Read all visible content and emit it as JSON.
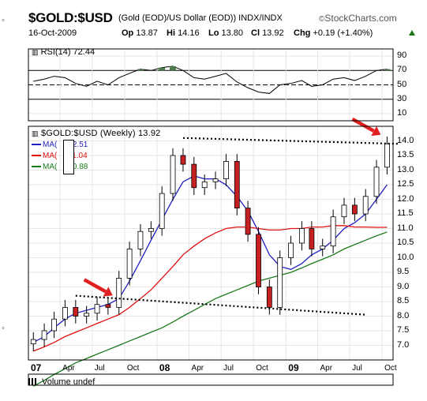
{
  "header": {
    "title": "$GOLD:$USD",
    "subtitle": "(Gold (EOD)/US Dollar (EOD)) INDX/INDX",
    "brand": "StockCharts.com",
    "date": "16-Oct-2009",
    "op_label": "Op",
    "op_value": "13.87",
    "hi_label": "Hi",
    "hi_value": "14.16",
    "lo_label": "Lo",
    "lo_value": "13.80",
    "cl_label": "Cl",
    "cl_value": "13.92",
    "chg_label": "Chg",
    "chg_value": "+0.19 (+1.40%)",
    "chg_color": "#1a7a1a"
  },
  "rsi_panel": {
    "label": "RSI(14) 72.44",
    "y_ticks": [
      "90",
      "70",
      "50",
      "30",
      "10"
    ],
    "colors": {
      "line": "#000000",
      "fill_overbought": "#4a7a4a"
    }
  },
  "price_panel": {
    "label": "$GOLD:$USD (Weekly) 13.92",
    "ma_legend": [
      {
        "label": "MA(",
        "value": "12.51",
        "color": "#1f1fbf"
      },
      {
        "label": "MA(",
        "value": "11.04",
        "color": "#e01010"
      },
      {
        "label": "MA(",
        "value": "10.88",
        "color": "#1a7a1a"
      }
    ],
    "volume_label": "Volume undef"
  },
  "chart_data": {
    "type": "line",
    "title": "$GOLD:$USD (Weekly) 13.92",
    "price_axis": {
      "ylim": [
        6.5,
        14.5
      ],
      "ticks": [
        "14.0",
        "13.5",
        "13.0",
        "12.5",
        "12.0",
        "11.5",
        "11.0",
        "10.5",
        "10.0",
        "9.5",
        "9.0",
        "8.5",
        "8.0",
        "7.5",
        "7.0"
      ]
    },
    "x_axis": {
      "labels": [
        "07",
        "Apr",
        "Jul",
        "Oct",
        "08",
        "Apr",
        "Jul",
        "Oct",
        "09",
        "Apr",
        "Jul",
        "Oct"
      ],
      "bold": [
        true,
        false,
        false,
        false,
        true,
        false,
        false,
        false,
        true,
        false,
        false,
        false
      ]
    },
    "price_series": {
      "dates": [
        "2007-01",
        "2007-02",
        "2007-03",
        "2007-04",
        "2007-05",
        "2007-06",
        "2007-07",
        "2007-08",
        "2007-09",
        "2007-10",
        "2007-11",
        "2007-12",
        "2008-01",
        "2008-02",
        "2008-03",
        "2008-04",
        "2008-05",
        "2008-06",
        "2008-07",
        "2008-08",
        "2008-09",
        "2008-10",
        "2008-11",
        "2008-12",
        "2009-01",
        "2009-02",
        "2009-03",
        "2009-04",
        "2009-05",
        "2009-06",
        "2009-07",
        "2009-08",
        "2009-09",
        "2009-10"
      ],
      "close": [
        7.2,
        7.5,
        7.9,
        8.3,
        8.0,
        8.1,
        8.4,
        8.3,
        9.3,
        10.3,
        10.9,
        11.0,
        12.2,
        13.5,
        13.2,
        12.4,
        12.6,
        12.7,
        13.3,
        11.7,
        10.8,
        9.0,
        8.3,
        10.0,
        10.5,
        11.0,
        10.3,
        10.4,
        11.4,
        11.8,
        11.5,
        12.1,
        13.1,
        13.9
      ]
    },
    "moving_averages": [
      {
        "name": "MA(",
        "value": 12.51,
        "values": [
          7.1,
          7.3,
          7.6,
          7.9,
          8.1,
          8.2,
          8.3,
          8.4,
          8.6,
          9.2,
          9.9,
          10.6,
          11.3,
          12.0,
          12.6,
          12.8,
          12.7,
          12.7,
          12.5,
          12.1,
          11.6,
          10.9,
          10.1,
          9.7,
          9.6,
          9.8,
          10.1,
          10.3,
          10.6,
          11.0,
          11.2,
          11.5,
          12.0,
          12.5
        ]
      },
      {
        "name": "MA(",
        "value": 11.04,
        "values": [
          6.8,
          6.95,
          7.1,
          7.3,
          7.45,
          7.6,
          7.75,
          7.9,
          8.05,
          8.3,
          8.6,
          8.9,
          9.3,
          9.7,
          10.1,
          10.4,
          10.65,
          10.85,
          11.0,
          11.05,
          11.05,
          11.0,
          10.95,
          10.95,
          11.0,
          11.0,
          11.05,
          11.05,
          11.1,
          11.1,
          11.05,
          11.05,
          11.04,
          11.04
        ]
      },
      {
        "name": "MA(",
        "value": 10.88,
        "values": [
          5.6,
          5.8,
          6.0,
          6.2,
          6.4,
          6.55,
          6.7,
          6.85,
          7.0,
          7.15,
          7.3,
          7.45,
          7.6,
          7.8,
          8.0,
          8.2,
          8.4,
          8.6,
          8.75,
          8.9,
          9.05,
          9.2,
          9.3,
          9.4,
          9.5,
          9.65,
          9.8,
          9.95,
          10.1,
          10.3,
          10.45,
          10.6,
          10.75,
          10.88
        ]
      }
    ],
    "rsi": {
      "ylim": [
        0,
        100
      ],
      "values": [
        55,
        58,
        62,
        60,
        52,
        48,
        55,
        50,
        60,
        66,
        72,
        70,
        74,
        76,
        70,
        60,
        58,
        62,
        66,
        54,
        46,
        40,
        38,
        50,
        52,
        56,
        48,
        50,
        58,
        60,
        56,
        62,
        70,
        72
      ],
      "levels": [
        70,
        50,
        30
      ]
    },
    "trendlines": [
      {
        "x": [
          "2008-03",
          "2009-11"
        ],
        "y": [
          14.1,
          13.9
        ],
        "style": "dotted"
      },
      {
        "x": [
          "2007-05",
          "2009-08"
        ],
        "y": [
          8.7,
          8.05
        ],
        "style": "dotted"
      }
    ],
    "annotations": [
      {
        "shape": "arrow",
        "color": "#e02020",
        "points_to": [
          "2007-09",
          8.6
        ]
      },
      {
        "shape": "arrow",
        "color": "#e02020",
        "points_to": [
          "2009-10",
          14.1
        ]
      }
    ],
    "grid": true,
    "colors": {
      "up_candle": "#ffffff",
      "down_candle": "#c82020",
      "wick": "#000000",
      "grid": "#e6e6e6"
    }
  }
}
